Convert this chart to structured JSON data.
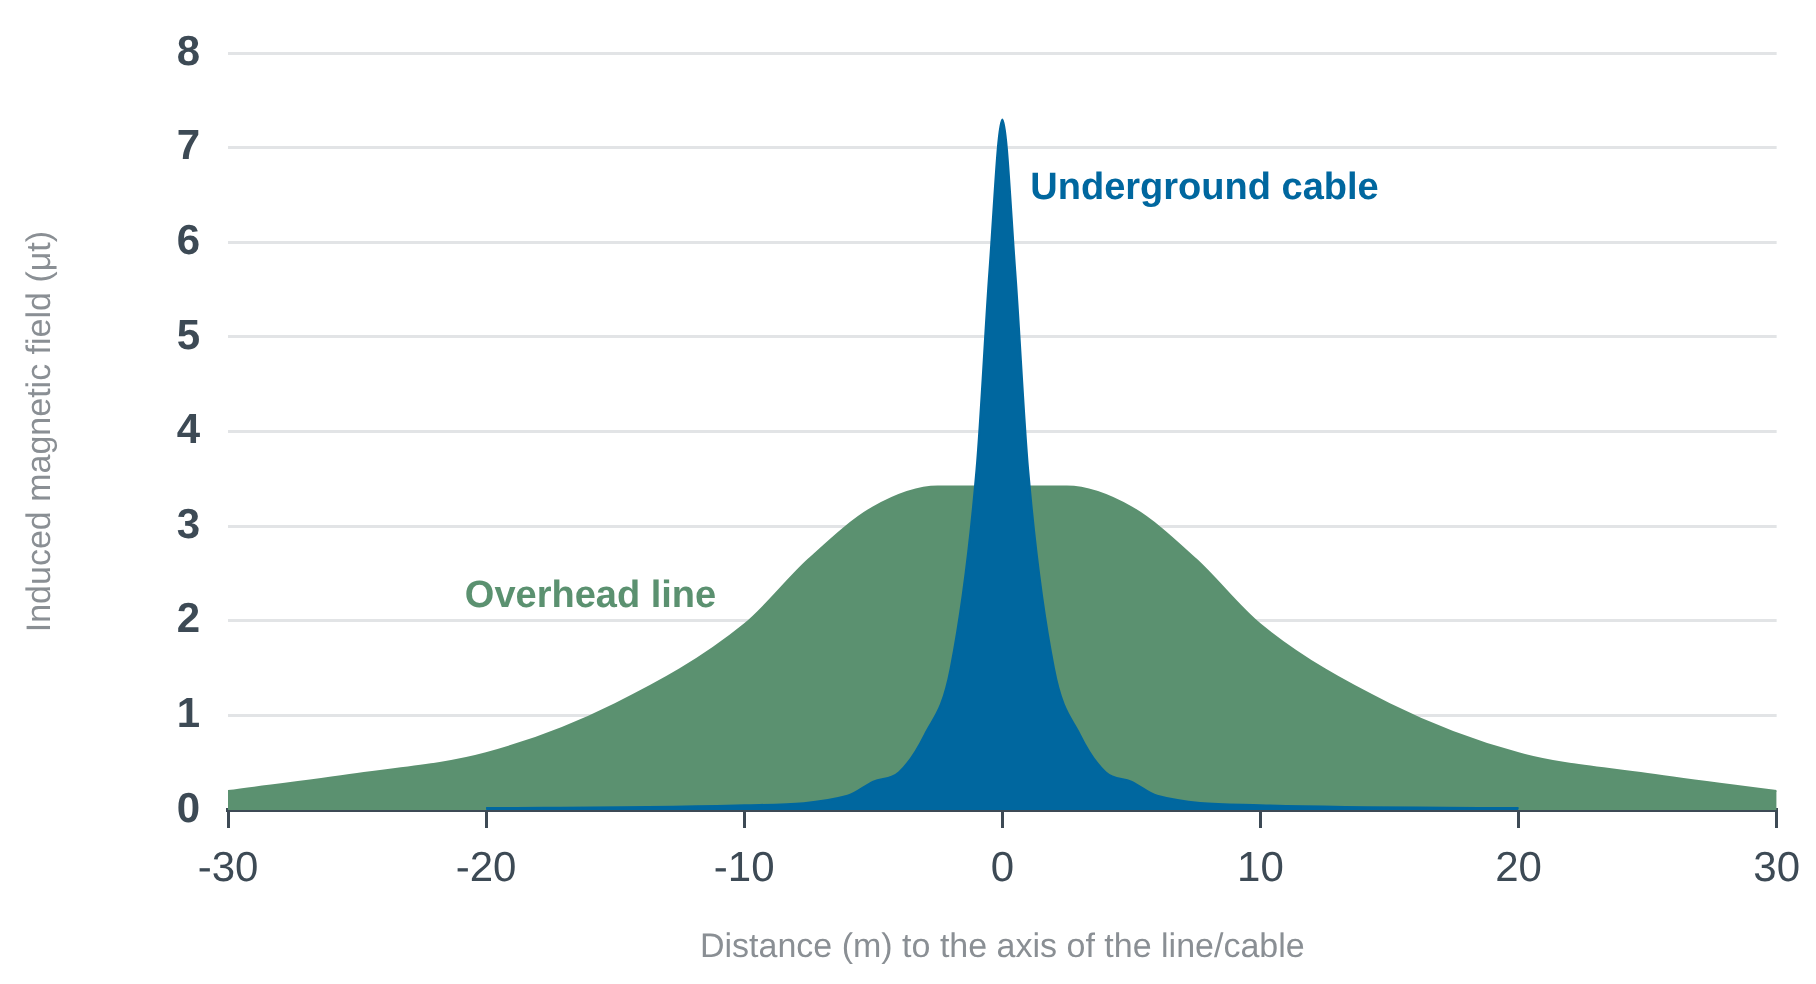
{
  "chart_data": {
    "type": "area",
    "xlabel": "Distance (m) to the axis of the line/cable",
    "ylabel": "Induced magnetic field (μt)",
    "xlim": [
      -30,
      30
    ],
    "xticks": [
      -30,
      -20,
      -10,
      0,
      10,
      20,
      30
    ],
    "ylim": [
      0,
      8
    ],
    "yticks": [
      0,
      1,
      2,
      3,
      4,
      5,
      6,
      7,
      8
    ],
    "grid": "y",
    "legend": false,
    "series": [
      {
        "name": "Overhead line",
        "color": "#5b9170",
        "x": [
          -30,
          -25,
          -20,
          -15,
          -10,
          -7.5,
          -5,
          -2.5,
          0,
          2.5,
          5,
          7.5,
          10,
          15,
          20,
          25,
          30
        ],
        "values": [
          0.2,
          0.38,
          0.6,
          1.12,
          1.96,
          2.65,
          3.2,
          3.42,
          null,
          3.42,
          3.2,
          2.65,
          1.96,
          1.12,
          0.6,
          0.38,
          0.2
        ]
      },
      {
        "name": "Underground cable",
        "color": "#00679f",
        "x": [
          -20,
          -10,
          -6,
          -5,
          -4,
          -3,
          -2,
          -1,
          -0.5,
          0,
          0.5,
          1,
          2,
          3,
          4,
          5,
          6,
          10,
          20
        ],
        "values": [
          0.02,
          0.05,
          0.15,
          0.3,
          0.4,
          0.8,
          1.5,
          3.6,
          5.7,
          7.3,
          5.7,
          3.6,
          1.5,
          0.8,
          0.4,
          0.3,
          0.15,
          0.05,
          0.02
        ]
      }
    ]
  }
}
